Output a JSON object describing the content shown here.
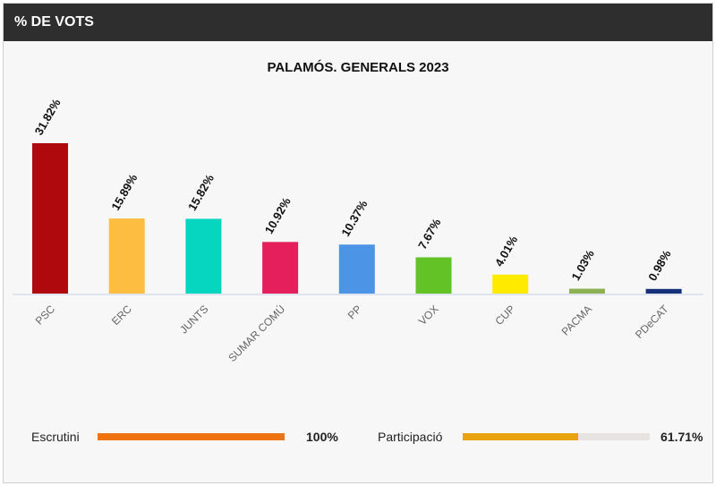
{
  "header": {
    "title": "% DE VOTS"
  },
  "chart_data": {
    "type": "bar",
    "title": "PALAMÓS. GENERALS 2023",
    "categories": [
      "PSC",
      "ERC",
      "JUNTS",
      "SUMAR COMÚ",
      "PP",
      "VOX",
      "CUP",
      "PACMA",
      "PDeCAT"
    ],
    "values": [
      31.82,
      15.89,
      15.82,
      10.92,
      10.37,
      7.67,
      4.01,
      1.03,
      0.98
    ],
    "value_labels": [
      "31.82%",
      "15.89%",
      "15.82%",
      "10.92%",
      "10.37%",
      "7.67%",
      "4.01%",
      "1.03%",
      "0.98%"
    ],
    "colors": [
      "#b0090d",
      "#fcbd41",
      "#06d5c0",
      "#e41f5b",
      "#4c95e6",
      "#63c326",
      "#ffea00",
      "#8db153",
      "#17307a"
    ],
    "xlabel": "",
    "ylabel": "",
    "ylim": [
      0,
      35
    ],
    "grid": false,
    "legend": false
  },
  "stats": {
    "escrutini": {
      "label": "Escrutini",
      "value_text": "100%",
      "value": 100,
      "color": "#f07312"
    },
    "participacio": {
      "label": "Participació",
      "value_text": "61.71%",
      "value": 61.71,
      "color": "#e8a30e"
    }
  }
}
